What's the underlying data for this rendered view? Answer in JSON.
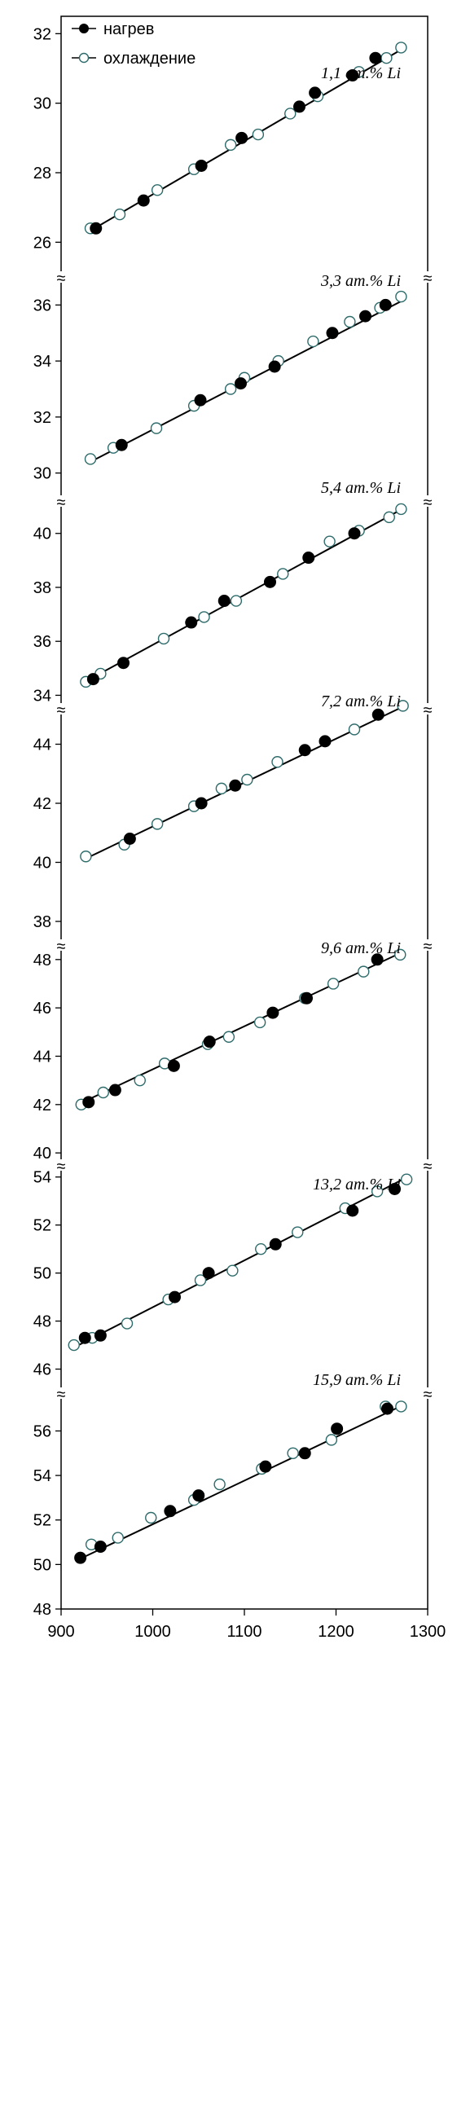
{
  "chart_data": {
    "type": "scatter",
    "title": "",
    "xlabel": "",
    "ylabel": "",
    "xlim": [
      900,
      1300
    ],
    "xticks": [
      900,
      1000,
      1100,
      1200,
      1300
    ],
    "axis_break_symbol": "≈",
    "grid": false,
    "legend": {
      "placement": "top-left",
      "entries": [
        {
          "label": "нагрев",
          "marker": "filled-circle",
          "line": true
        },
        {
          "label": "охлаждение",
          "marker": "open-circle",
          "line": true
        }
      ]
    },
    "marker_colors": {
      "heating_fill": "#000000",
      "cooling_edge": "#2e6b6b",
      "cooling_fill": "#ffffff",
      "line": "#000000"
    },
    "panels": [
      {
        "label": "1,1 ат.% Li",
        "ylim": [
          25,
          32.5
        ],
        "yticks": [
          26,
          28,
          30,
          32
        ],
        "fit": [
          [
            930,
            26.3
          ],
          [
            1275,
            31.6
          ]
        ],
        "series": [
          {
            "name": "нагрев",
            "points": [
              [
                938,
                26.4
              ],
              [
                990,
                27.2
              ],
              [
                1053,
                28.2
              ],
              [
                1097,
                29.0
              ],
              [
                1160,
                29.9
              ],
              [
                1177,
                30.3
              ],
              [
                1218,
                30.8
              ],
              [
                1243,
                31.3
              ]
            ]
          },
          {
            "name": "охлаждение",
            "points": [
              [
                932,
                26.4
              ],
              [
                964,
                26.8
              ],
              [
                1005,
                27.5
              ],
              [
                1045,
                28.1
              ],
              [
                1085,
                28.8
              ],
              [
                1115,
                29.1
              ],
              [
                1150,
                29.7
              ],
              [
                1180,
                30.2
              ],
              [
                1225,
                30.9
              ],
              [
                1255,
                31.3
              ],
              [
                1271,
                31.6
              ]
            ]
          }
        ]
      },
      {
        "label": "3,3 ат.% Li",
        "ylim": [
          29,
          37
        ],
        "yticks": [
          30,
          32,
          34,
          36
        ],
        "fit": [
          [
            932,
            30.4
          ],
          [
            1275,
            36.2
          ]
        ],
        "series": [
          {
            "name": "нагрев",
            "points": [
              [
                966,
                31.0
              ],
              [
                1052,
                32.6
              ],
              [
                1096,
                33.2
              ],
              [
                1133,
                33.8
              ],
              [
                1196,
                35.0
              ],
              [
                1232,
                35.6
              ],
              [
                1254,
                36.0
              ]
            ]
          },
          {
            "name": "охлаждение",
            "points": [
              [
                932,
                30.5
              ],
              [
                957,
                30.9
              ],
              [
                1004,
                31.6
              ],
              [
                1045,
                32.4
              ],
              [
                1085,
                33.0
              ],
              [
                1100,
                33.4
              ],
              [
                1137,
                34.0
              ],
              [
                1175,
                34.7
              ],
              [
                1215,
                35.4
              ],
              [
                1248,
                35.9
              ],
              [
                1271,
                36.3
              ]
            ]
          }
        ]
      },
      {
        "label": "5,4 ат.% Li",
        "ylim": [
          33.5,
          41.2
        ],
        "yticks": [
          34,
          36,
          38,
          40
        ],
        "fit": [
          [
            926,
            34.5
          ],
          [
            1272,
            40.9
          ]
        ],
        "series": [
          {
            "name": "нагрев",
            "points": [
              [
                935,
                34.6
              ],
              [
                968,
                35.2
              ],
              [
                1042,
                36.7
              ],
              [
                1078,
                37.5
              ],
              [
                1128,
                38.2
              ],
              [
                1170,
                39.1
              ],
              [
                1220,
                40.0
              ]
            ]
          },
          {
            "name": "охлаждение",
            "points": [
              [
                927,
                34.5
              ],
              [
                943,
                34.8
              ],
              [
                1012,
                36.1
              ],
              [
                1056,
                36.9
              ],
              [
                1091,
                37.5
              ],
              [
                1142,
                38.5
              ],
              [
                1193,
                39.7
              ],
              [
                1225,
                40.1
              ],
              [
                1258,
                40.6
              ],
              [
                1271,
                40.9
              ]
            ]
          }
        ]
      },
      {
        "label": "7,2 ат.% Li",
        "ylim": [
          37.2,
          45.2
        ],
        "yticks": [
          38,
          40,
          42,
          44
        ],
        "fit": [
          [
            925,
            40.1
          ],
          [
            1275,
            45.3
          ]
        ],
        "series": [
          {
            "name": "нагрев",
            "points": [
              [
                975,
                40.8
              ],
              [
                1053,
                42.0
              ],
              [
                1090,
                42.6
              ],
              [
                1166,
                43.8
              ],
              [
                1188,
                44.1
              ],
              [
                1246,
                45.0
              ]
            ]
          },
          {
            "name": "охлаждение",
            "points": [
              [
                927,
                40.2
              ],
              [
                969,
                40.6
              ],
              [
                1005,
                41.3
              ],
              [
                1045,
                41.9
              ],
              [
                1075,
                42.5
              ],
              [
                1103,
                42.8
              ],
              [
                1136,
                43.4
              ],
              [
                1220,
                44.5
              ],
              [
                1273,
                45.3
              ]
            ]
          }
        ]
      },
      {
        "label": "9,6 ат.% Li",
        "ylim": [
          39.5,
          48.6
        ],
        "yticks": [
          40,
          42,
          44,
          46,
          48
        ],
        "fit": [
          [
            918,
            42.0
          ],
          [
            1272,
            48.3
          ]
        ],
        "series": [
          {
            "name": "нагрев",
            "points": [
              [
                930,
                42.1
              ],
              [
                959,
                42.6
              ],
              [
                1023,
                43.6
              ],
              [
                1062,
                44.6
              ],
              [
                1131,
                45.8
              ],
              [
                1168,
                46.4
              ],
              [
                1245,
                48.0
              ]
            ]
          },
          {
            "name": "охлаждение",
            "points": [
              [
                922,
                42.0
              ],
              [
                946,
                42.5
              ],
              [
                986,
                43.0
              ],
              [
                1013,
                43.7
              ],
              [
                1060,
                44.5
              ],
              [
                1083,
                44.8
              ],
              [
                1117,
                45.4
              ],
              [
                1166,
                46.4
              ],
              [
                1197,
                47.0
              ],
              [
                1230,
                47.5
              ],
              [
                1270,
                48.2
              ]
            ]
          }
        ]
      },
      {
        "label": "13,2 ат.% Li",
        "ylim": [
          45,
          54.5
        ],
        "yticks": [
          46,
          48,
          50,
          52,
          54
        ],
        "fit": [
          [
            914,
            46.9
          ],
          [
            1278,
            54.0
          ]
        ],
        "series": [
          {
            "name": "нагрев",
            "points": [
              [
                926,
                47.3
              ],
              [
                943,
                47.4
              ],
              [
                1024,
                49.0
              ],
              [
                1061,
                50.0
              ],
              [
                1134,
                51.2
              ],
              [
                1218,
                52.6
              ],
              [
                1264,
                53.5
              ]
            ]
          },
          {
            "name": "охлаждение",
            "points": [
              [
                914,
                47.0
              ],
              [
                934,
                47.3
              ],
              [
                972,
                47.9
              ],
              [
                1017,
                48.9
              ],
              [
                1052,
                49.7
              ],
              [
                1087,
                50.1
              ],
              [
                1118,
                51.0
              ],
              [
                1158,
                51.7
              ],
              [
                1210,
                52.7
              ],
              [
                1245,
                53.4
              ],
              [
                1277,
                53.9
              ]
            ]
          }
        ]
      },
      {
        "label": "15,9 ат.% Li",
        "ylim": [
          48,
          57.7
        ],
        "yticks": [
          48,
          50,
          52,
          54,
          56
        ],
        "fit": [
          [
            918,
            50.2
          ],
          [
            1270,
            57.1
          ]
        ],
        "series": [
          {
            "name": "нагрев",
            "points": [
              [
                921,
                50.3
              ],
              [
                943,
                50.8
              ],
              [
                1019,
                52.4
              ],
              [
                1050,
                53.1
              ],
              [
                1123,
                54.4
              ],
              [
                1166,
                55.0
              ],
              [
                1201,
                56.1
              ],
              [
                1256,
                57.0
              ]
            ]
          },
          {
            "name": "охлаждение",
            "points": [
              [
                933,
                50.9
              ],
              [
                962,
                51.2
              ],
              [
                998,
                52.1
              ],
              [
                1045,
                52.9
              ],
              [
                1073,
                53.6
              ],
              [
                1119,
                54.3
              ],
              [
                1153,
                55.0
              ],
              [
                1195,
                55.6
              ],
              [
                1254,
                57.1
              ],
              [
                1271,
                57.1
              ]
            ]
          }
        ]
      }
    ]
  }
}
